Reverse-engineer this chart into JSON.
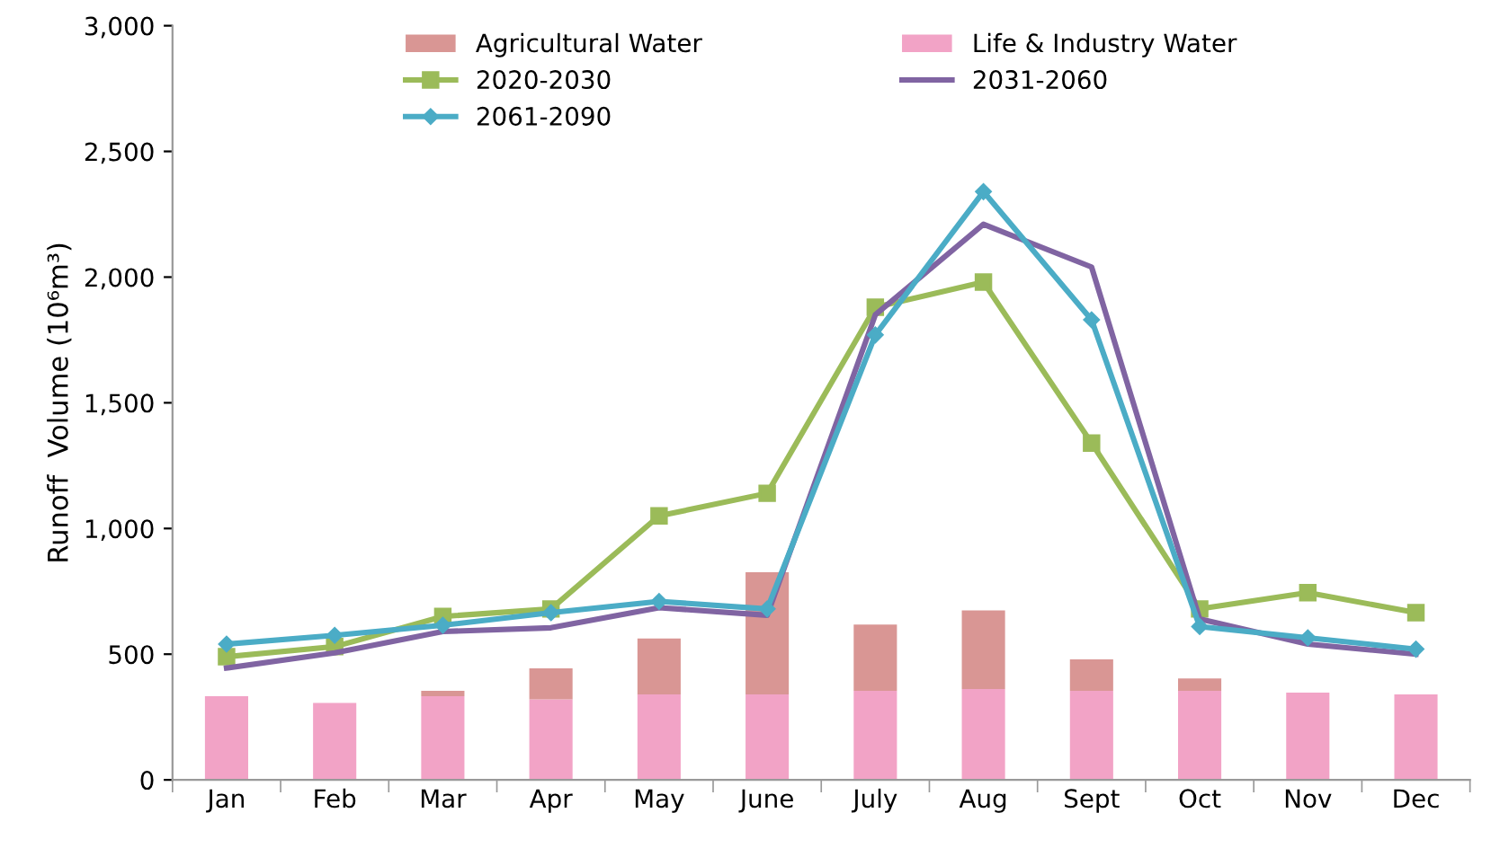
{
  "chart_data": {
    "type": "bar",
    "stacked": true,
    "ylabel": "Runoff  Volume (10⁶m³)",
    "categories": [
      "Jan",
      "Feb",
      "Mar",
      "Apr",
      "May",
      "June",
      "July",
      "Aug",
      "Sept",
      "Oct",
      "Nov",
      "Dec"
    ],
    "series": [
      {
        "name": "Life & Industry Water",
        "color": "#f2a3c6",
        "values": [
          333,
          306,
          333,
          320,
          340,
          340,
          354,
          361,
          354,
          354,
          347,
          340
        ]
      },
      {
        "name": "Agricultural Water",
        "color": "#d99694",
        "values": [
          0,
          0,
          21,
          124,
          222,
          486,
          264,
          313,
          125,
          49,
          0,
          0
        ]
      },
      {
        "name": "2020-2030",
        "type": "line",
        "marker": "square",
        "color": "#9bbb59",
        "values": [
          490,
          530,
          650,
          680,
          1050,
          1140,
          1880,
          1980,
          1340,
          680,
          745,
          665
        ]
      },
      {
        "name": "2031-2060",
        "type": "line",
        "marker": "none",
        "color": "#8064a2",
        "values": [
          445,
          505,
          590,
          605,
          685,
          655,
          1850,
          2210,
          2040,
          640,
          540,
          500
        ]
      },
      {
        "name": "2061-2090",
        "type": "line",
        "marker": "diamond",
        "color": "#4bacc6",
        "values": [
          540,
          575,
          615,
          665,
          710,
          680,
          1770,
          2340,
          1830,
          610,
          565,
          520
        ]
      }
    ],
    "ylim": [
      0,
      3000
    ],
    "yticks": [
      0,
      500,
      {
        "value": 1000,
        "label": "1,000"
      },
      {
        "value": 1500,
        "label": "1,500"
      },
      {
        "value": 2000,
        "label": "2,000"
      },
      {
        "value": 2500,
        "label": "2,500"
      },
      {
        "value": 3000,
        "label": "3,000"
      }
    ],
    "grid": false,
    "legend": "top"
  }
}
